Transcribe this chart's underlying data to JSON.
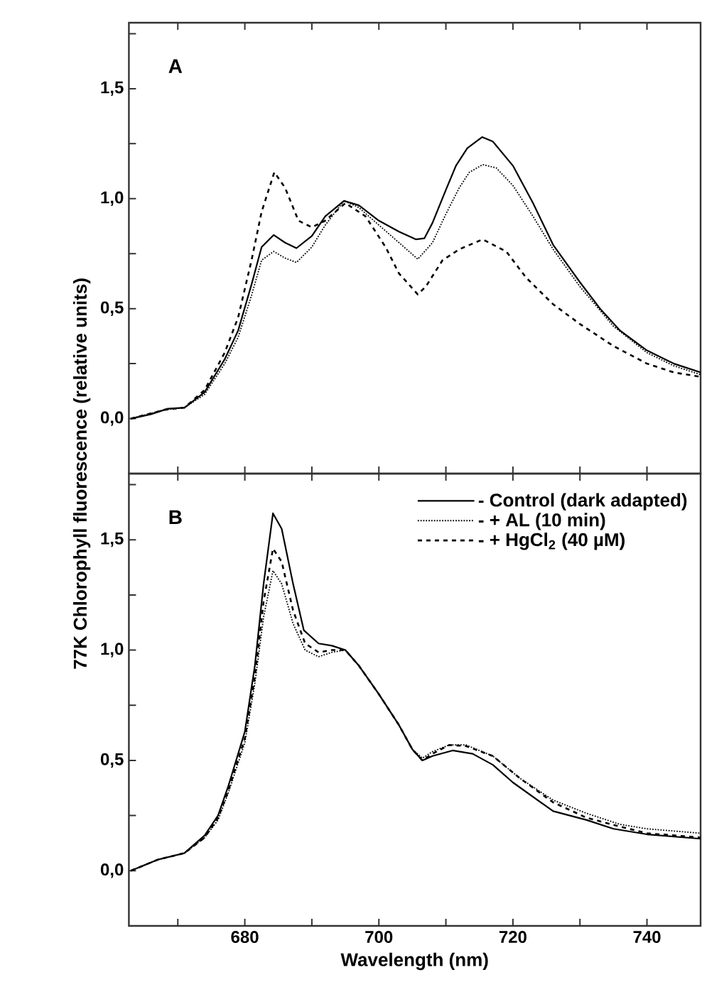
{
  "chart_data": [
    {
      "type": "line",
      "annotations": [
        "A"
      ],
      "xlim": [
        662.7,
        748
      ],
      "ylim": [
        -0.25,
        1.8
      ],
      "xticks": [
        {
          "value": 670,
          "label": null
        },
        {
          "value": 680,
          "label": null
        },
        {
          "value": 690,
          "label": null
        },
        {
          "value": 700,
          "label": null
        },
        {
          "value": 710,
          "label": null
        },
        {
          "value": 720,
          "label": null
        },
        {
          "value": 730,
          "label": null
        },
        {
          "value": 740,
          "label": null
        }
      ],
      "yticks": [
        {
          "value": 0,
          "label": "0,0"
        },
        {
          "value": 0.25,
          "label": null
        },
        {
          "value": 0.5,
          "label": "0,5"
        },
        {
          "value": 0.75,
          "label": null
        },
        {
          "value": 1.0,
          "label": "1,0"
        },
        {
          "value": 1.25,
          "label": null
        },
        {
          "value": 1.5,
          "label": "1,5"
        },
        {
          "value": 1.75,
          "label": null
        }
      ],
      "tick_labels": "y",
      "series": [
        {
          "color": "#000000",
          "line_style": "solid",
          "x": [
            663,
            666,
            668.5,
            671,
            674,
            677,
            679,
            681,
            682.5,
            684.3,
            686,
            687.7,
            690,
            692,
            694.8,
            697,
            700,
            703,
            705.5,
            706.8,
            708,
            710,
            711.5,
            713.2,
            715.4,
            717,
            720,
            723,
            726,
            730,
            733,
            736,
            740,
            744,
            748
          ],
          "values": [
            0,
            0.02,
            0.045,
            0.05,
            0.12,
            0.27,
            0.4,
            0.61,
            0.78,
            0.835,
            0.8,
            0.775,
            0.83,
            0.92,
            0.99,
            0.97,
            0.9,
            0.85,
            0.815,
            0.82,
            0.89,
            1.04,
            1.15,
            1.23,
            1.28,
            1.26,
            1.15,
            0.98,
            0.79,
            0.62,
            0.5,
            0.4,
            0.31,
            0.25,
            0.21
          ]
        },
        {
          "color": "#000000",
          "line_style": "dotted",
          "x": [
            663,
            668,
            671,
            674,
            677,
            679,
            681,
            682.5,
            684.3,
            686,
            687.7,
            690,
            692,
            694.8,
            697,
            700,
            703,
            705.8,
            708,
            710,
            712,
            713.5,
            715.5,
            717.5,
            720,
            723,
            726,
            730,
            735,
            740,
            744,
            748
          ],
          "values": [
            0,
            0.04,
            0.05,
            0.11,
            0.25,
            0.37,
            0.56,
            0.72,
            0.76,
            0.73,
            0.71,
            0.78,
            0.88,
            0.99,
            0.96,
            0.88,
            0.8,
            0.725,
            0.8,
            0.93,
            1.05,
            1.12,
            1.155,
            1.14,
            1.06,
            0.92,
            0.77,
            0.6,
            0.42,
            0.3,
            0.24,
            0.2
          ]
        },
        {
          "color": "#000000",
          "line_style": "dashed",
          "x": [
            663,
            668,
            671,
            674,
            677,
            679,
            681,
            682.5,
            684.4,
            686,
            688,
            690,
            692,
            695,
            698,
            701,
            703,
            705.8,
            707,
            709.5,
            712,
            715.5,
            719,
            722,
            726,
            730,
            735,
            740,
            744,
            748
          ],
          "values": [
            0,
            0.04,
            0.05,
            0.13,
            0.3,
            0.46,
            0.72,
            0.94,
            1.12,
            1.05,
            0.9,
            0.87,
            0.9,
            0.98,
            0.92,
            0.78,
            0.66,
            0.565,
            0.6,
            0.72,
            0.77,
            0.815,
            0.76,
            0.64,
            0.52,
            0.43,
            0.33,
            0.25,
            0.21,
            0.19
          ]
        }
      ]
    },
    {
      "type": "line",
      "annotations": [
        "B"
      ],
      "xlabel": "Wavelength (nm)",
      "ylabel": "77K Chlorophyll fluorescence (relative units)",
      "xlim": [
        662.7,
        748
      ],
      "ylim": [
        -0.25,
        1.8
      ],
      "legend": "top right",
      "xticks": [
        {
          "value": 670,
          "label": null
        },
        680,
        {
          "value": 690,
          "label": null
        },
        700,
        {
          "value": 710,
          "label": null
        },
        720,
        {
          "value": 730,
          "label": null
        },
        740
      ],
      "yticks": [
        {
          "value": 0,
          "label": "0,0"
        },
        {
          "value": 0.25,
          "label": null
        },
        {
          "value": 0.5,
          "label": "0,5"
        },
        {
          "value": 0.75,
          "label": null
        },
        {
          "value": 1.0,
          "label": "1,0"
        },
        {
          "value": 1.25,
          "label": null
        },
        {
          "value": 1.5,
          "label": "1,5"
        },
        {
          "value": 1.75,
          "label": null
        }
      ],
      "series": [
        {
          "name": "- Control (dark adapted)",
          "color": "#000000",
          "line_style": "solid",
          "x": [
            663,
            667,
            671,
            674,
            676,
            677.5,
            680,
            681.5,
            682.8,
            684.2,
            685.5,
            687.2,
            688.8,
            691,
            693,
            695,
            697,
            700,
            703,
            705,
            706.5,
            708,
            711,
            714,
            717,
            720,
            726,
            731,
            735,
            740,
            748
          ],
          "values": [
            0,
            0.05,
            0.08,
            0.16,
            0.25,
            0.38,
            0.63,
            0.93,
            1.3,
            1.62,
            1.55,
            1.3,
            1.09,
            1.03,
            1.02,
            1.0,
            0.93,
            0.8,
            0.66,
            0.55,
            0.5,
            0.52,
            0.545,
            0.53,
            0.48,
            0.4,
            0.27,
            0.23,
            0.19,
            0.165,
            0.145
          ]
        },
        {
          "name": "- + AL (10 min)",
          "color": "#000000",
          "line_style": "dotted",
          "x": [
            663,
            667,
            671,
            674,
            676,
            677.5,
            680,
            681.5,
            682.8,
            684.2,
            685.5,
            687.2,
            689,
            691,
            693,
            695,
            697,
            700,
            703,
            705,
            706.5,
            708,
            710.5,
            713,
            717,
            721,
            726,
            731,
            736,
            740,
            748
          ],
          "values": [
            0,
            0.05,
            0.08,
            0.15,
            0.23,
            0.35,
            0.58,
            0.85,
            1.15,
            1.36,
            1.3,
            1.12,
            1.0,
            0.97,
            0.99,
            1.0,
            0.93,
            0.8,
            0.66,
            0.55,
            0.51,
            0.54,
            0.57,
            0.57,
            0.52,
            0.42,
            0.32,
            0.26,
            0.21,
            0.19,
            0.17
          ]
        },
        {
          "name": "- + HgCl$_{2}$ (40 µM)",
          "color": "#000000",
          "line_style": "dashed",
          "x": [
            663,
            667,
            671,
            674,
            676,
            677.5,
            680,
            681.5,
            682.8,
            684.2,
            685.5,
            687.2,
            689,
            691,
            693,
            695,
            697,
            700,
            703,
            705,
            706.5,
            708,
            710.5,
            713,
            717,
            721,
            726,
            731,
            736,
            740,
            748
          ],
          "values": [
            0,
            0.05,
            0.08,
            0.15,
            0.24,
            0.36,
            0.6,
            0.88,
            1.22,
            1.46,
            1.4,
            1.18,
            1.03,
            0.99,
            1.0,
            1.0,
            0.93,
            0.8,
            0.66,
            0.55,
            0.5,
            0.53,
            0.57,
            0.565,
            0.52,
            0.42,
            0.31,
            0.24,
            0.2,
            0.17,
            0.15
          ]
        }
      ]
    }
  ]
}
